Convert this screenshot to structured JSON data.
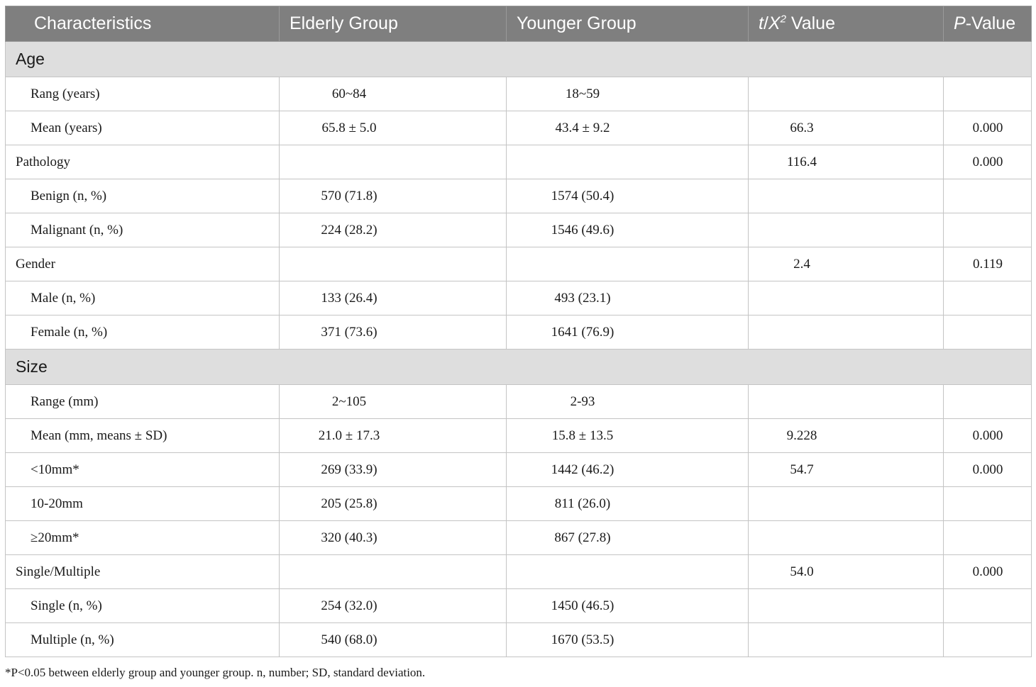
{
  "header": {
    "characteristics": "Characteristics",
    "elderly": "Elderly Group",
    "younger": "Younger Group",
    "stat_t": "t",
    "stat_slash": "/",
    "stat_x": "X",
    "stat_sup": "2",
    "stat_value": " Value",
    "p_italic": "P",
    "p_rest": "-Value"
  },
  "rows": [
    {
      "section": "Age"
    },
    {
      "label": "Rang (years)",
      "elderly": "60~84",
      "younger": "18~59",
      "t": "",
      "p": ""
    },
    {
      "label": "Mean (years)",
      "elderly": "65.8 ± 5.0",
      "younger": "43.4 ± 9.2",
      "t": "66.3",
      "p": "0.000"
    },
    {
      "label": "Pathology",
      "elderly": "",
      "younger": "",
      "t": "116.4",
      "p": "0.000",
      "top": true
    },
    {
      "label": "Benign (n, %)",
      "elderly": "570 (71.8)",
      "younger": "1574 (50.4)",
      "t": "",
      "p": ""
    },
    {
      "label": "Malignant (n, %)",
      "elderly": "224 (28.2)",
      "younger": "1546 (49.6)",
      "t": "",
      "p": ""
    },
    {
      "label": "Gender",
      "elderly": "",
      "younger": "",
      "t": "2.4",
      "p": "0.119",
      "top": true
    },
    {
      "label": "Male (n, %)",
      "elderly": "133 (26.4)",
      "younger": "493 (23.1)",
      "t": "",
      "p": ""
    },
    {
      "label": "Female (n, %)",
      "elderly": "371 (73.6)",
      "younger": "1641 (76.9)",
      "t": "",
      "p": ""
    },
    {
      "section": "Size"
    },
    {
      "label": "Range (mm)",
      "elderly": "2~105",
      "younger": "2-93",
      "t": "",
      "p": ""
    },
    {
      "label": "Mean (mm, means ± SD)",
      "elderly": "21.0 ± 17.3",
      "younger": "15.8 ± 13.5",
      "t": "9.228",
      "p": "0.000"
    },
    {
      "label": "<10mm*",
      "elderly": "269 (33.9)",
      "younger": "1442 (46.2)",
      "t": "54.7",
      "p": "0.000"
    },
    {
      "label": "10-20mm",
      "elderly": "205 (25.8)",
      "younger": "811 (26.0)",
      "t": "",
      "p": ""
    },
    {
      "label": "≥20mm*",
      "elderly": "320 (40.3)",
      "younger": "867 (27.8)",
      "t": "",
      "p": ""
    },
    {
      "label": "Single/Multiple",
      "elderly": "",
      "younger": "",
      "t": "54.0",
      "p": "0.000",
      "top": true
    },
    {
      "label": "Single (n, %)",
      "elderly": "254 (32.0)",
      "younger": "1450 (46.5)",
      "t": "",
      "p": ""
    },
    {
      "label": "Multiple (n, %)",
      "elderly": "540 (68.0)",
      "younger": "1670 (53.5)",
      "t": "",
      "p": ""
    }
  ],
  "footnote": "*P<0.05 between elderly group and younger group. n, number; SD, standard deviation."
}
